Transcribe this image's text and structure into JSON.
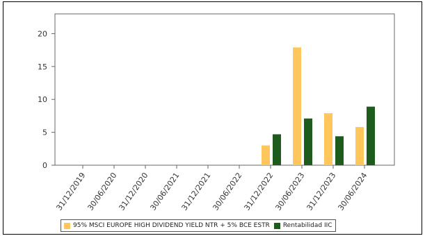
{
  "chart_data": {
    "type": "bar",
    "categories": [
      "31/12/2019",
      "30/06/2020",
      "31/12/2020",
      "30/06/2021",
      "31/12/2021",
      "30/06/2022",
      "31/12/2022",
      "30/06/2023",
      "31/12/2023",
      "30/06/2024"
    ],
    "series": [
      {
        "name": "95% MSCI EUROPE HIGH DIVIDEND YIELD NTR + 5% BCE ESTR",
        "color": "#FFC65C",
        "values": [
          null,
          null,
          null,
          null,
          null,
          null,
          3.0,
          17.9,
          7.9,
          5.8
        ]
      },
      {
        "name": "Rentabilidad IIC",
        "color": "#1E5C1E",
        "values": [
          null,
          null,
          null,
          null,
          null,
          null,
          4.7,
          7.1,
          4.4,
          8.9
        ]
      }
    ],
    "yticks": [
      0,
      5,
      10,
      15,
      20
    ],
    "ylim": [
      0,
      23
    ],
    "title": "",
    "xlabel": "",
    "ylabel": "",
    "legend_position": "bottom",
    "grid": false
  }
}
